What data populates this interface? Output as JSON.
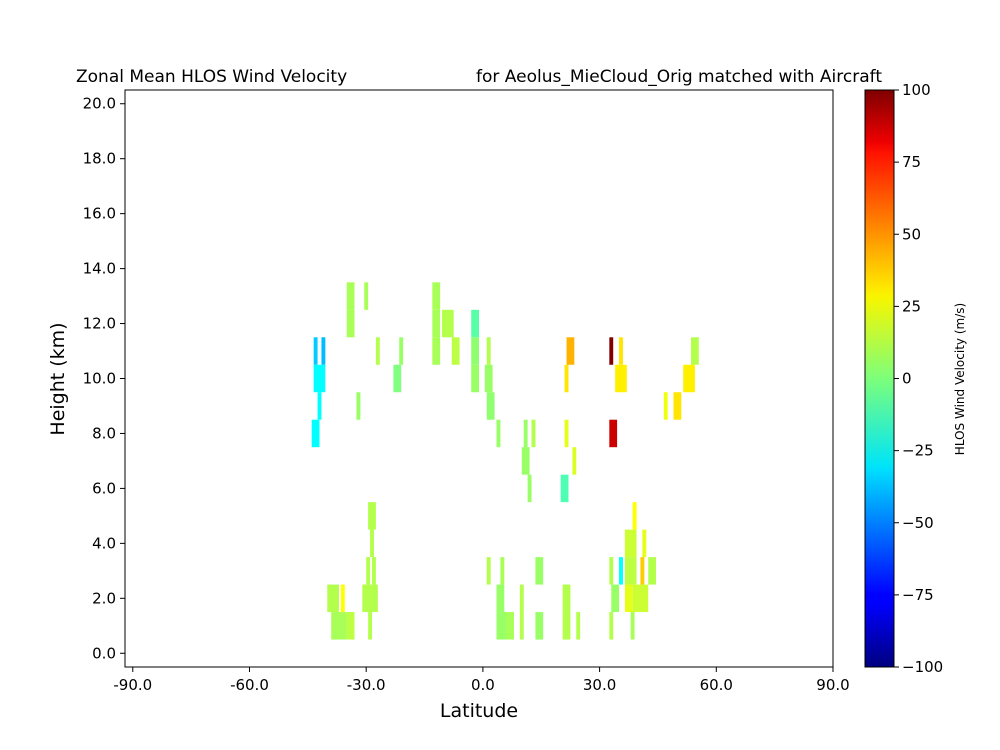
{
  "chart_data": {
    "type": "heatmap",
    "title_left": "Zonal Mean HLOS Wind Velocity",
    "title_right": "for Aeolus_MieCloud_Orig matched with Aircraft",
    "xlabel": "Latitude",
    "ylabel": "Height (km)",
    "xlim": [
      -92,
      90
    ],
    "ylim": [
      -0.5,
      20.5
    ],
    "x_ticks": [
      -90,
      -60,
      -30,
      0,
      30,
      60,
      90
    ],
    "x_tick_labels": [
      "-90.0",
      "-60.0",
      "-30.0",
      "0.0",
      "30.0",
      "60.0",
      "90.0"
    ],
    "y_ticks": [
      0,
      2,
      4,
      6,
      8,
      10,
      12,
      14,
      16,
      18,
      20
    ],
    "y_tick_labels": [
      "0.0",
      "2.0",
      "4.0",
      "6.0",
      "8.0",
      "10.0",
      "12.0",
      "14.0",
      "16.0",
      "18.0",
      "20.0"
    ],
    "colorbar": {
      "label": "HLOS Wind Velocity (m/s)",
      "colormap": "jet",
      "vmin": -100,
      "vmax": 100,
      "ticks": [
        -100,
        -75,
        -50,
        -25,
        0,
        25,
        50,
        75,
        100
      ],
      "tick_labels": [
        "−100",
        "−75",
        "−50",
        "−25",
        "0",
        "25",
        "50",
        "75",
        "100"
      ]
    },
    "cell_height_km": 1.0,
    "cells": [
      {
        "lat": -43,
        "alt": 11,
        "w": 1,
        "v": -35
      },
      {
        "lat": -41,
        "alt": 11,
        "w": 1,
        "v": -38
      },
      {
        "lat": -42,
        "alt": 10,
        "w": 3,
        "v": -25
      },
      {
        "lat": -42,
        "alt": 9,
        "w": 1,
        "v": -25
      },
      {
        "lat": -43,
        "alt": 8,
        "w": 2,
        "v": -25
      },
      {
        "lat": -34,
        "alt": 13,
        "w": 2,
        "v": 8
      },
      {
        "lat": -34,
        "alt": 12,
        "w": 2,
        "v": 8
      },
      {
        "lat": -30,
        "alt": 13,
        "w": 1,
        "v": 8
      },
      {
        "lat": -27,
        "alt": 11,
        "w": 1,
        "v": 10
      },
      {
        "lat": -21,
        "alt": 11,
        "w": 1,
        "v": 5
      },
      {
        "lat": -22,
        "alt": 10,
        "w": 2,
        "v": 0
      },
      {
        "lat": -32,
        "alt": 9,
        "w": 1,
        "v": 5
      },
      {
        "lat": -12,
        "alt": 13,
        "w": 2,
        "v": 8
      },
      {
        "lat": -12,
        "alt": 12,
        "w": 2,
        "v": 8
      },
      {
        "lat": -12,
        "alt": 11,
        "w": 2,
        "v": 8
      },
      {
        "lat": -9,
        "alt": 12,
        "w": 3,
        "v": 10
      },
      {
        "lat": -7,
        "alt": 11,
        "w": 2,
        "v": 12
      },
      {
        "lat": -2,
        "alt": 12,
        "w": 2,
        "v": -8
      },
      {
        "lat": -2,
        "alt": 11,
        "w": 2,
        "v": 3
      },
      {
        "lat": -2,
        "alt": 10,
        "w": 2,
        "v": 5
      },
      {
        "lat": 1.5,
        "alt": 11,
        "w": 1,
        "v": 10
      },
      {
        "lat": 1.5,
        "alt": 10,
        "w": 2,
        "v": 5
      },
      {
        "lat": 2,
        "alt": 9,
        "w": 2,
        "v": 3
      },
      {
        "lat": 4,
        "alt": 8,
        "w": 1,
        "v": 5
      },
      {
        "lat": 11,
        "alt": 8,
        "w": 1,
        "v": 5
      },
      {
        "lat": 13,
        "alt": 8,
        "w": 1,
        "v": 10
      },
      {
        "lat": 11,
        "alt": 7,
        "w": 2,
        "v": 5
      },
      {
        "lat": 12,
        "alt": 6,
        "w": 1,
        "v": 5
      },
      {
        "lat": 21.5,
        "alt": 8,
        "w": 1,
        "v": 20
      },
      {
        "lat": 23.5,
        "alt": 7,
        "w": 1,
        "v": 18
      },
      {
        "lat": 21,
        "alt": 6,
        "w": 2,
        "v": -10
      },
      {
        "lat": 22.5,
        "alt": 11,
        "w": 2,
        "v": 40
      },
      {
        "lat": 21.5,
        "alt": 10,
        "w": 1,
        "v": 30
      },
      {
        "lat": 33,
        "alt": 11,
        "w": 1,
        "v": 100
      },
      {
        "lat": 35.5,
        "alt": 11,
        "w": 1,
        "v": 30
      },
      {
        "lat": 35.5,
        "alt": 10,
        "w": 3,
        "v": 28
      },
      {
        "lat": 33.5,
        "alt": 8,
        "w": 2,
        "v": 85
      },
      {
        "lat": 54.5,
        "alt": 11,
        "w": 2,
        "v": 10
      },
      {
        "lat": 53,
        "alt": 10,
        "w": 3,
        "v": 28
      },
      {
        "lat": 47,
        "alt": 9,
        "w": 1,
        "v": 22
      },
      {
        "lat": 50,
        "alt": 9,
        "w": 2,
        "v": 30
      },
      {
        "lat": -28.5,
        "alt": 5,
        "w": 2,
        "v": 10
      },
      {
        "lat": -28.5,
        "alt": 4,
        "w": 1,
        "v": 10
      },
      {
        "lat": -28,
        "alt": 3,
        "w": 1,
        "v": 10
      },
      {
        "lat": -29.5,
        "alt": 3,
        "w": 1,
        "v": 10
      },
      {
        "lat": -38.5,
        "alt": 2,
        "w": 3,
        "v": 10
      },
      {
        "lat": -36,
        "alt": 2,
        "w": 1,
        "v": 25
      },
      {
        "lat": -29,
        "alt": 2,
        "w": 4,
        "v": 10
      },
      {
        "lat": -37,
        "alt": 1,
        "w": 4,
        "v": 8
      },
      {
        "lat": -34,
        "alt": 1,
        "w": 2,
        "v": 12
      },
      {
        "lat": -29,
        "alt": 1,
        "w": 1,
        "v": 10
      },
      {
        "lat": 1.5,
        "alt": 3,
        "w": 1,
        "v": 10
      },
      {
        "lat": 5,
        "alt": 3,
        "w": 1,
        "v": 8
      },
      {
        "lat": 4.5,
        "alt": 2,
        "w": 2,
        "v": 5
      },
      {
        "lat": 10,
        "alt": 2,
        "w": 1,
        "v": 10
      },
      {
        "lat": 14.5,
        "alt": 3,
        "w": 2,
        "v": 5
      },
      {
        "lat": 5,
        "alt": 1,
        "w": 3,
        "v": 5
      },
      {
        "lat": 7,
        "alt": 1,
        "w": 2,
        "v": 8
      },
      {
        "lat": 10,
        "alt": 1,
        "w": 1,
        "v": 10
      },
      {
        "lat": 14.5,
        "alt": 1,
        "w": 2,
        "v": 5
      },
      {
        "lat": 21.5,
        "alt": 2,
        "w": 2,
        "v": 10
      },
      {
        "lat": 21.5,
        "alt": 1,
        "w": 2,
        "v": 10
      },
      {
        "lat": 24.5,
        "alt": 1,
        "w": 1,
        "v": 10
      },
      {
        "lat": 39,
        "alt": 5,
        "w": 1,
        "v": 25
      },
      {
        "lat": 38,
        "alt": 4,
        "w": 3,
        "v": 15
      },
      {
        "lat": 41.5,
        "alt": 4,
        "w": 1,
        "v": 20
      },
      {
        "lat": 33,
        "alt": 3,
        "w": 1,
        "v": 10
      },
      {
        "lat": 35.5,
        "alt": 3,
        "w": 1,
        "v": -25
      },
      {
        "lat": 38,
        "alt": 3,
        "w": 3,
        "v": 12
      },
      {
        "lat": 41,
        "alt": 3,
        "w": 1,
        "v": 35
      },
      {
        "lat": 43.5,
        "alt": 3,
        "w": 2,
        "v": 10
      },
      {
        "lat": 34,
        "alt": 2,
        "w": 2,
        "v": 5
      },
      {
        "lat": 37.5,
        "alt": 2,
        "w": 2,
        "v": 20
      },
      {
        "lat": 40.5,
        "alt": 2,
        "w": 4,
        "v": 15
      },
      {
        "lat": 33,
        "alt": 1,
        "w": 1,
        "v": 10
      },
      {
        "lat": 38.5,
        "alt": 1,
        "w": 1,
        "v": 8
      }
    ]
  }
}
